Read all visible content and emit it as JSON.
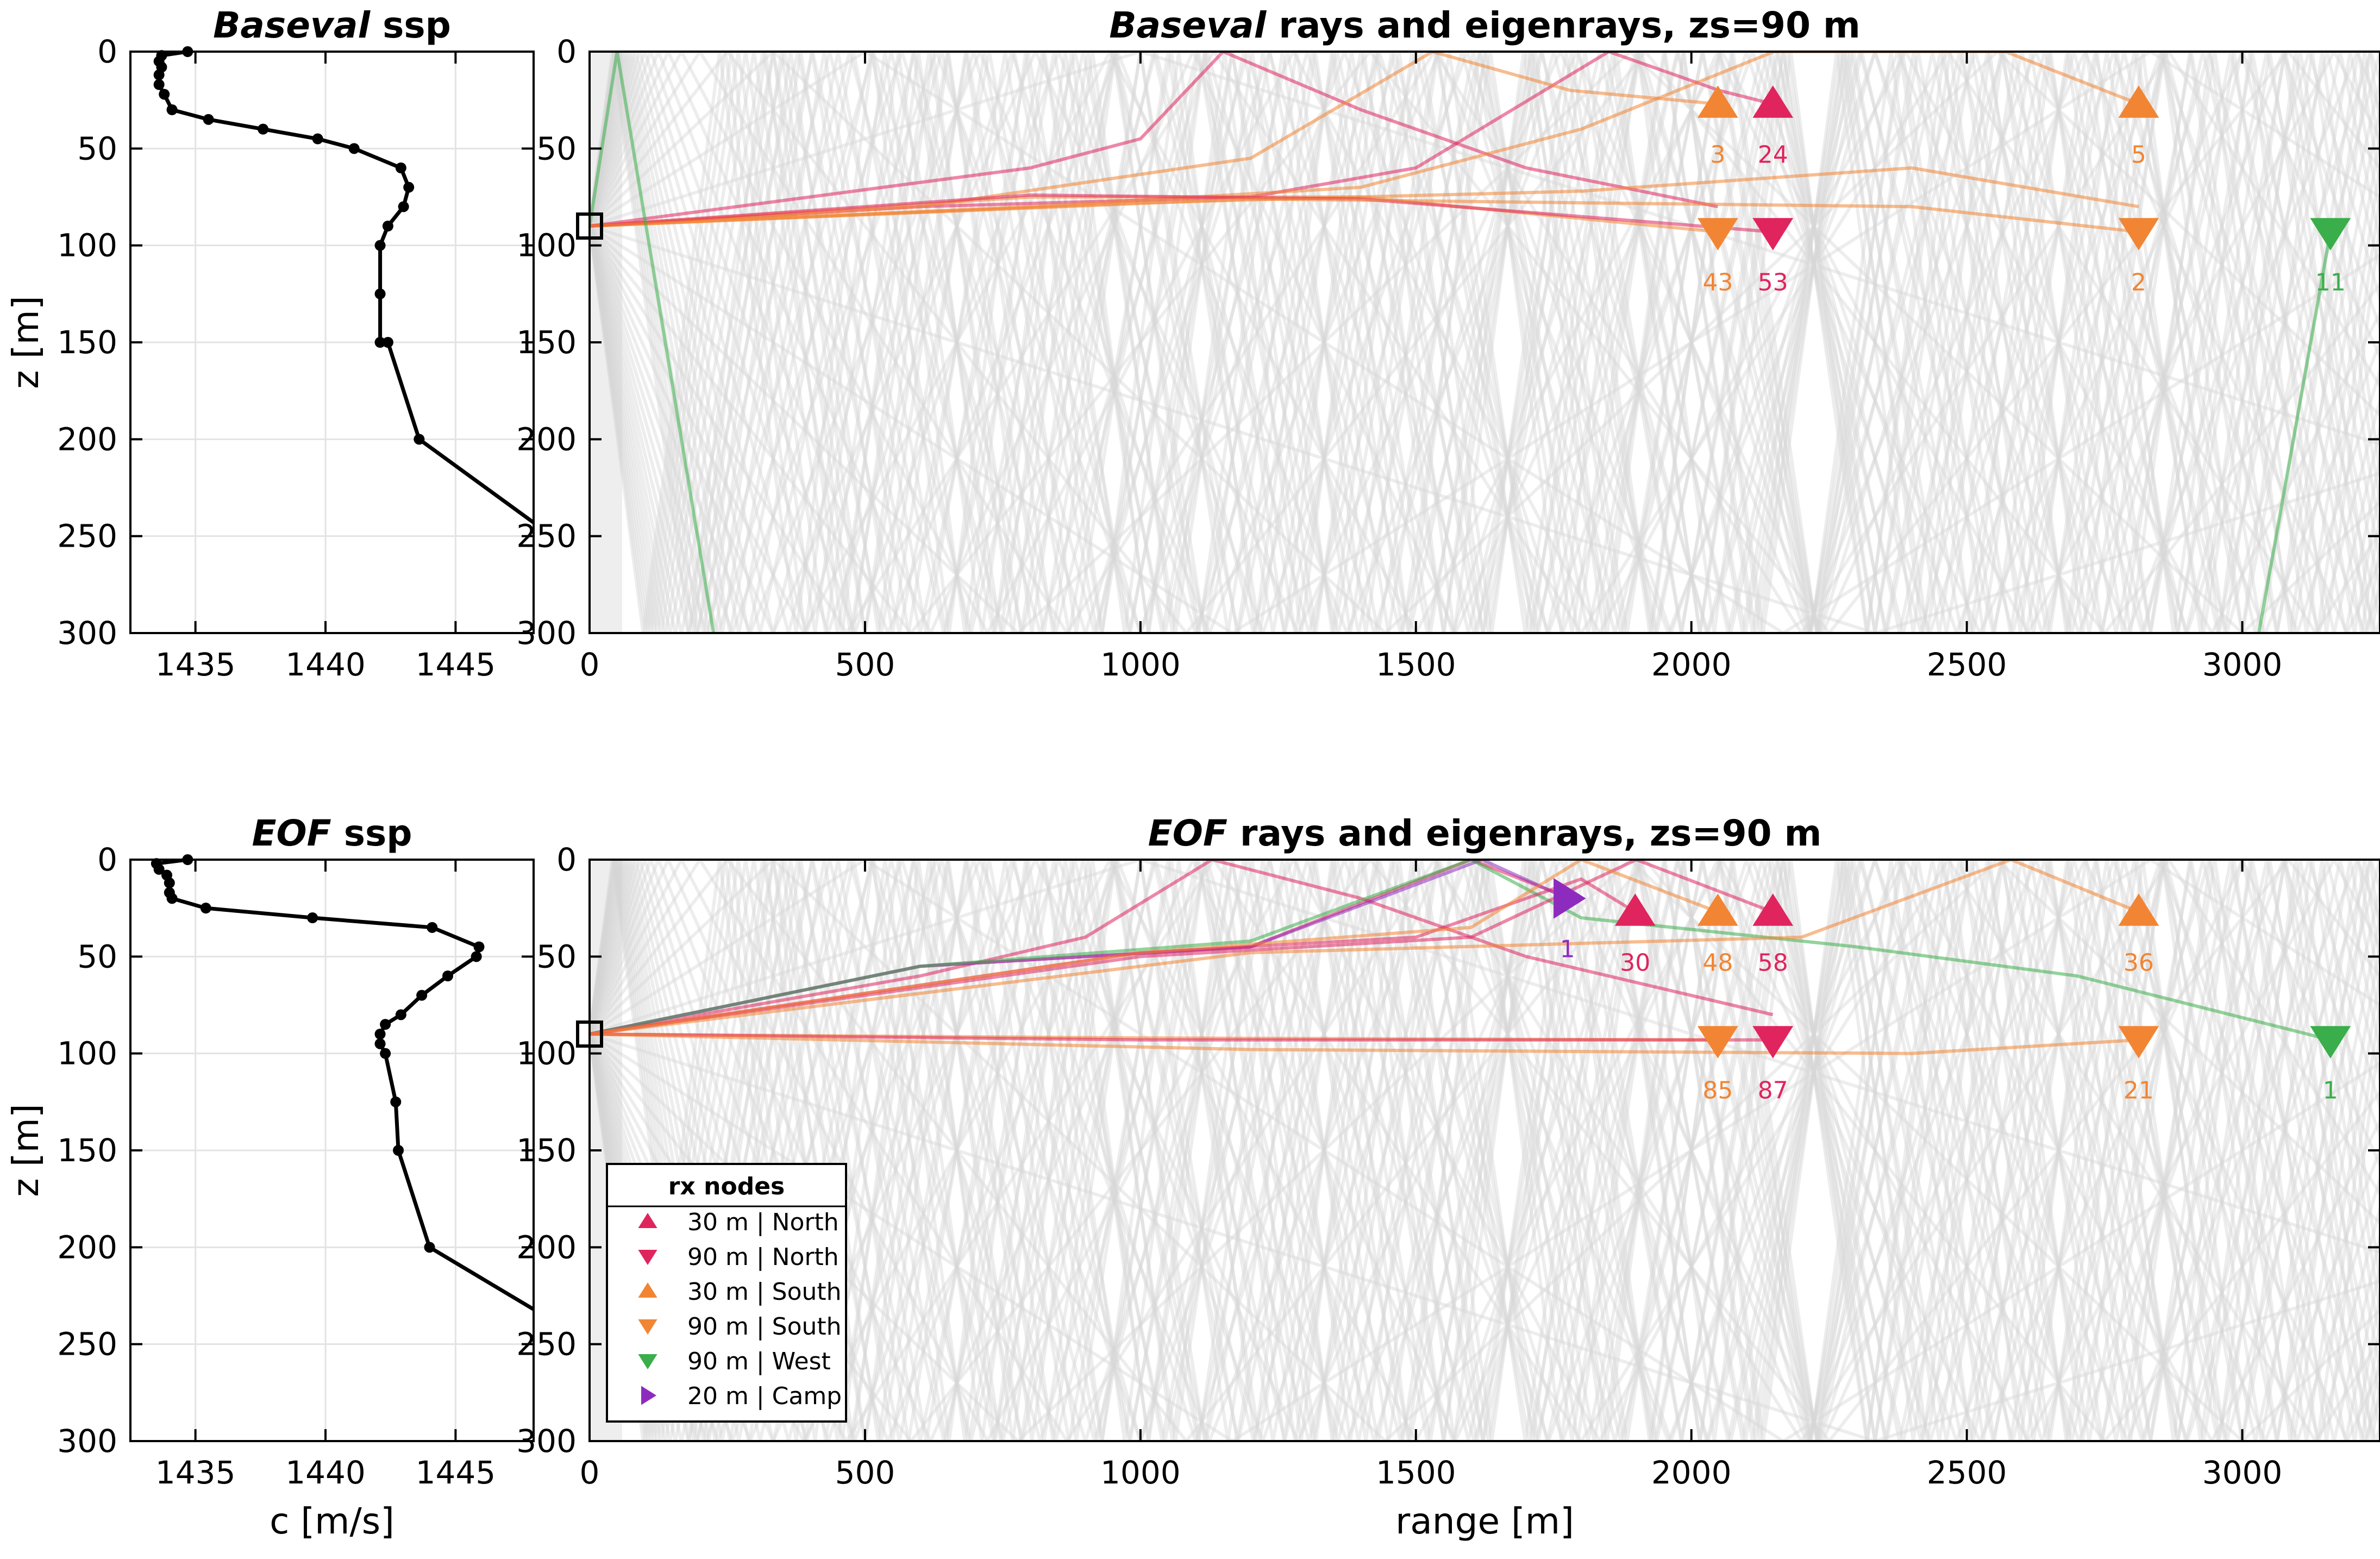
{
  "figure": {
    "panels": [
      {
        "id": "baseval",
        "ssp_title_italic": "Baseval",
        "ssp_title_rest": " ssp",
        "ray_title_italic": "Baseval",
        "ray_title_rest": " rays and eigenrays, zs=90 m"
      },
      {
        "id": "eof",
        "ssp_title_italic": "EOF",
        "ssp_title_rest": " ssp",
        "ray_title_italic": "EOF",
        "ray_title_rest": " rays and eigenrays, zs=90 m"
      }
    ],
    "ylabel": "z [m]",
    "ssp_xlabel": "c [m/s]",
    "ray_xlabel": "range [m]",
    "legend": {
      "title": "rx nodes",
      "items": [
        {
          "marker": "triangle-up",
          "color": "#e0245e",
          "label": "30 m | North"
        },
        {
          "marker": "triangle-down",
          "color": "#e0245e",
          "label": "90 m | North"
        },
        {
          "marker": "triangle-up",
          "color": "#f28533",
          "label": "30 m | South"
        },
        {
          "marker": "triangle-down",
          "color": "#f28533",
          "label": "90 m | South"
        },
        {
          "marker": "triangle-down",
          "color": "#3aae4a",
          "label": "90 m | West"
        },
        {
          "marker": "triangle-right",
          "color": "#8e2bbf",
          "label": "20 m | Camp"
        }
      ]
    }
  },
  "chart_data": [
    {
      "type": "line",
      "panel": "Baseval ssp",
      "xlabel": "c [m/s]",
      "ylabel": "z [m]",
      "xlim": [
        1432.5,
        1448
      ],
      "ylim": [
        300,
        0
      ],
      "y_reversed": true,
      "xticks": [
        1435,
        1440,
        1445
      ],
      "yticks": [
        0,
        50,
        100,
        150,
        200,
        250,
        300
      ],
      "grid": true,
      "series": [
        {
          "c": [
            1434.7,
            1433.7,
            1433.6,
            1433.7,
            1433.6,
            1433.6,
            1433.8,
            1434.1,
            1435.5,
            1437.6,
            1439.7,
            1441.1,
            1442.9,
            1443.2,
            1443.0,
            1442.4,
            1442.1,
            1442.1,
            1442.1,
            1442.4,
            1443.6,
            1448.0
          ],
          "z": [
            0,
            2,
            5,
            8,
            12,
            17,
            22,
            30,
            35,
            40,
            45,
            50,
            60,
            70,
            80,
            90,
            100,
            125,
            150,
            150,
            200,
            243
          ]
        }
      ]
    },
    {
      "type": "line",
      "panel": "Baseval rays and eigenrays, zs=90 m",
      "xlabel": "",
      "ylabel": "z [m]",
      "xlim": [
        0,
        3250
      ],
      "ylim": [
        300,
        0
      ],
      "xticks": [
        0,
        500,
        1000,
        1500,
        2000,
        2500,
        3000
      ],
      "yticks": [
        0,
        50,
        100,
        150,
        200,
        250,
        300
      ],
      "source": {
        "range": 0,
        "depth": 90
      },
      "receivers": [
        {
          "range": 2048,
          "depth": 27,
          "marker": "up",
          "color": "#f28533",
          "label": "3"
        },
        {
          "range": 2148,
          "depth": 27,
          "marker": "up",
          "color": "#e0245e",
          "label": "24"
        },
        {
          "range": 2812,
          "depth": 27,
          "marker": "up",
          "color": "#f28533",
          "label": "5"
        },
        {
          "range": 2048,
          "depth": 93,
          "marker": "down",
          "color": "#f28533",
          "label": "43"
        },
        {
          "range": 2148,
          "depth": 93,
          "marker": "down",
          "color": "#e0245e",
          "label": "53"
        },
        {
          "range": 2812,
          "depth": 93,
          "marker": "down",
          "color": "#f28533",
          "label": "2"
        },
        {
          "range": 3160,
          "depth": 93,
          "marker": "down",
          "color": "#3aae4a",
          "label": "11"
        }
      ],
      "eigenrays": [
        {
          "color": "#e0245e",
          "range": [
            0,
            400,
            800,
            1000,
            1150,
            1400,
            1700,
            2048
          ],
          "depth": [
            90,
            75,
            60,
            45,
            0,
            30,
            60,
            80
          ]
        },
        {
          "color": "#e0245e",
          "range": [
            0,
            600,
            1200,
            1500,
            1850,
            2050,
            2148
          ],
          "depth": [
            90,
            80,
            75,
            60,
            0,
            20,
            27
          ]
        },
        {
          "color": "#f28533",
          "range": [
            0,
            600,
            1200,
            1530,
            1780,
            2048
          ],
          "depth": [
            90,
            80,
            55,
            0,
            20,
            27
          ]
        },
        {
          "color": "#f28533",
          "range": [
            0,
            800,
            1400,
            1800,
            2150,
            2570,
            2812
          ],
          "depth": [
            90,
            80,
            70,
            40,
            0,
            0,
            27
          ]
        },
        {
          "color": "#f28533",
          "range": [
            0,
            1000,
            1800,
            2400,
            2812
          ],
          "depth": [
            90,
            78,
            72,
            60,
            80
          ]
        },
        {
          "color": "#f28533",
          "range": [
            0,
            800,
            1400,
            2048
          ],
          "depth": [
            90,
            75,
            75,
            93
          ]
        },
        {
          "color": "#e0245e",
          "range": [
            0,
            800,
            1400,
            2148
          ],
          "depth": [
            90,
            74,
            76,
            93
          ]
        },
        {
          "color": "#f28533",
          "range": [
            0,
            1200,
            2400,
            2812
          ],
          "depth": [
            90,
            76,
            80,
            93
          ]
        },
        {
          "color": "#3aae4a",
          "range": [
            0,
            50,
            225
          ],
          "depth": [
            90,
            0,
            300
          ]
        },
        {
          "color": "#3aae4a",
          "range": [
            3030,
            3160
          ],
          "depth": [
            300,
            93
          ]
        }
      ]
    },
    {
      "type": "line",
      "panel": "EOF ssp",
      "xlabel": "c [m/s]",
      "ylabel": "z [m]",
      "xlim": [
        1432.5,
        1448
      ],
      "ylim": [
        300,
        0
      ],
      "xticks": [
        1435,
        1440,
        1445
      ],
      "yticks": [
        0,
        50,
        100,
        150,
        200,
        250,
        300
      ],
      "grid": true,
      "series": [
        {
          "c": [
            1434.7,
            1433.5,
            1433.6,
            1433.9,
            1434.0,
            1434.0,
            1434.1,
            1435.4,
            1439.5,
            1444.1,
            1445.9,
            1445.8,
            1444.7,
            1443.7,
            1442.9,
            1442.3,
            1442.1,
            1442.1,
            1442.3,
            1442.7,
            1442.8,
            1444.0,
            1448.0
          ],
          "z": [
            0,
            2,
            5,
            8,
            12,
            17,
            20,
            25,
            30,
            35,
            45,
            50,
            60,
            70,
            80,
            85,
            90,
            95,
            100,
            125,
            150,
            200,
            232
          ]
        }
      ]
    },
    {
      "type": "line",
      "panel": "EOF rays and eigenrays, zs=90 m",
      "xlabel": "range [m]",
      "ylabel": "z [m]",
      "xlim": [
        0,
        3250
      ],
      "ylim": [
        300,
        0
      ],
      "xticks": [
        0,
        500,
        1000,
        1500,
        2000,
        2500,
        3000
      ],
      "yticks": [
        0,
        50,
        100,
        150,
        200,
        250,
        300
      ],
      "source": {
        "range": 0,
        "depth": 90
      },
      "receivers": [
        {
          "range": 1775,
          "depth": 20,
          "marker": "right",
          "color": "#8e2bbf",
          "label": "1"
        },
        {
          "range": 1898,
          "depth": 27,
          "marker": "up",
          "color": "#e0245e",
          "label": "30"
        },
        {
          "range": 2048,
          "depth": 27,
          "marker": "up",
          "color": "#f28533",
          "label": "48"
        },
        {
          "range": 2148,
          "depth": 27,
          "marker": "up",
          "color": "#e0245e",
          "label": "58"
        },
        {
          "range": 2812,
          "depth": 27,
          "marker": "up",
          "color": "#f28533",
          "label": "36"
        },
        {
          "range": 2048,
          "depth": 93,
          "marker": "down",
          "color": "#f28533",
          "label": "85"
        },
        {
          "range": 2148,
          "depth": 93,
          "marker": "down",
          "color": "#e0245e",
          "label": "87"
        },
        {
          "range": 2812,
          "depth": 93,
          "marker": "down",
          "color": "#f28533",
          "label": "21"
        },
        {
          "range": 3160,
          "depth": 93,
          "marker": "down",
          "color": "#3aae4a",
          "label": "1"
        }
      ],
      "eigenrays": [
        {
          "color": "#e0245e",
          "range": [
            0,
            600,
            900,
            1130,
            1400,
            1700,
            2148
          ],
          "depth": [
            90,
            60,
            40,
            0,
            20,
            50,
            80
          ]
        },
        {
          "color": "#e0245e",
          "range": [
            0,
            600,
            1200,
            1600,
            1780
          ],
          "depth": [
            90,
            55,
            45,
            0,
            20
          ]
        },
        {
          "color": "#8e2bbf",
          "range": [
            0,
            600,
            1200,
            1620,
            1775
          ],
          "depth": [
            90,
            55,
            45,
            0,
            20
          ]
        },
        {
          "color": "#3aae4a",
          "range": [
            0,
            600,
            1200,
            1600,
            1800,
            2300,
            2700,
            3160
          ],
          "depth": [
            90,
            55,
            42,
            0,
            30,
            45,
            60,
            93
          ]
        },
        {
          "color": "#e0245e",
          "range": [
            0,
            1000,
            1600,
            1900,
            2148
          ],
          "depth": [
            90,
            50,
            40,
            0,
            27
          ]
        },
        {
          "color": "#e0245e",
          "range": [
            0,
            1000,
            1500,
            1800,
            1898
          ],
          "depth": [
            90,
            48,
            40,
            10,
            27
          ]
        },
        {
          "color": "#f28533",
          "range": [
            0,
            1000,
            1600,
            1800,
            2048
          ],
          "depth": [
            90,
            48,
            35,
            0,
            27
          ]
        },
        {
          "color": "#f28533",
          "range": [
            0,
            1200,
            2200,
            2580,
            2812
          ],
          "depth": [
            90,
            48,
            40,
            0,
            27
          ]
        },
        {
          "color": "#f28533",
          "range": [
            0,
            1000,
            2048
          ],
          "depth": [
            90,
            92,
            93
          ]
        },
        {
          "color": "#e0245e",
          "range": [
            0,
            1000,
            2148
          ],
          "depth": [
            90,
            93,
            93
          ]
        },
        {
          "color": "#f28533",
          "range": [
            0,
            1200,
            2400,
            2812
          ],
          "depth": [
            90,
            98,
            100,
            93
          ]
        }
      ]
    }
  ]
}
